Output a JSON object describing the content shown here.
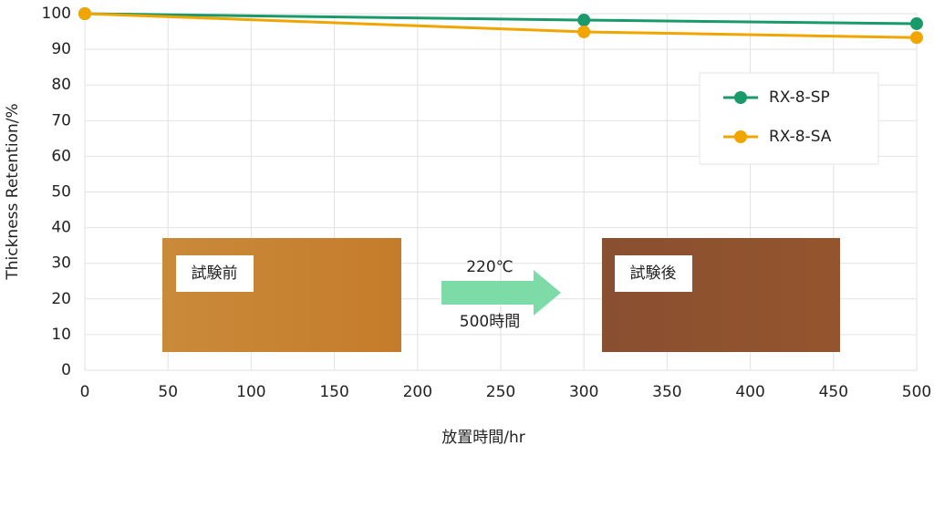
{
  "chart_data": {
    "type": "line",
    "x_label": "放置時間/hr",
    "y_label": "Thickness Retention/%",
    "x": [
      0,
      300,
      500
    ],
    "series": [
      {
        "name": "RX-8-SP",
        "color": "#1a9a6b",
        "values": [
          100,
          98.2,
          97.2
        ]
      },
      {
        "name": "RX-8-SA",
        "color": "#f0a500",
        "values": [
          100,
          94.9,
          93.3
        ]
      }
    ],
    "xlim": [
      0,
      500
    ],
    "xticks": [
      0,
      50,
      100,
      150,
      200,
      250,
      300,
      350,
      400,
      450,
      500
    ],
    "ylim": [
      0,
      100
    ],
    "yticks": [
      0,
      10,
      20,
      30,
      40,
      50,
      60,
      70,
      80,
      90,
      100
    ],
    "grid": true,
    "legend": "upper right",
    "annotations": {
      "before": "試験前",
      "after": "試験後",
      "temperature": "220℃",
      "duration": "500時間"
    }
  }
}
